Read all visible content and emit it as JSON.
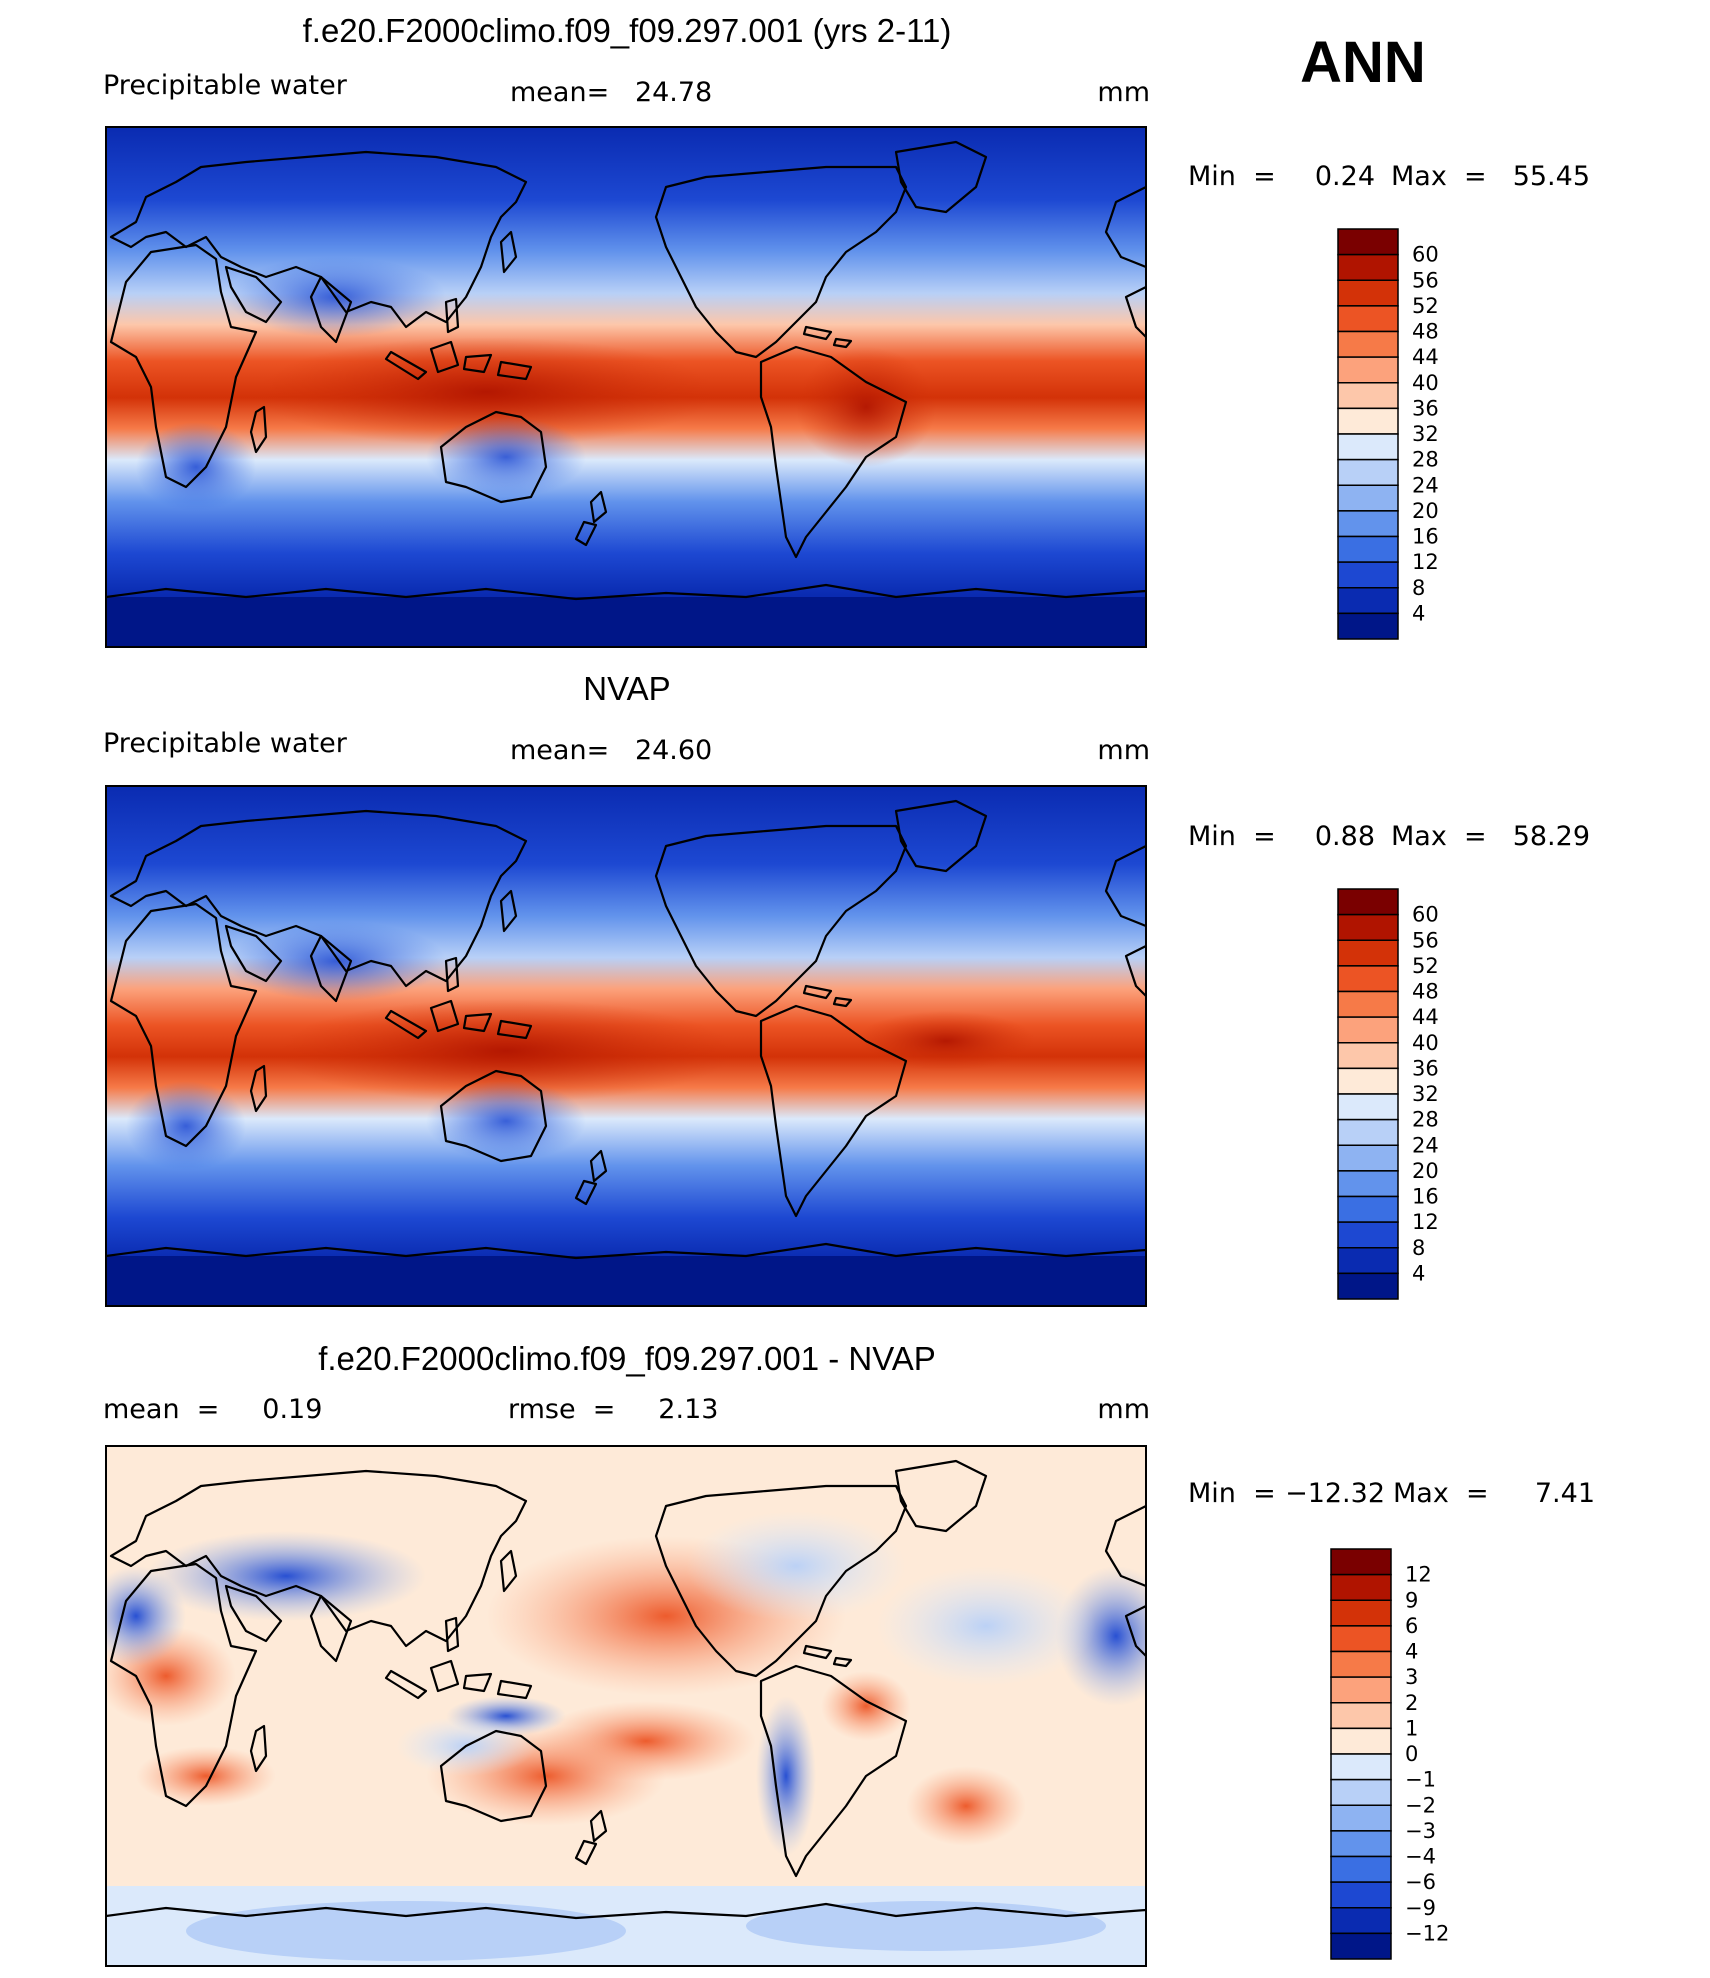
{
  "annotation": "ANN",
  "chart_data": [
    {
      "type": "heatmap",
      "title": "f.e20.F2000climo.f09_f09.297.001 (yrs 2-11)",
      "variable": "Precipitable water",
      "stat_left": "",
      "stat_center": "mean=   24.78",
      "units": "mm",
      "min_label": "Min  =",
      "min": "0.24",
      "max_label": "Max  =",
      "max": "55.45",
      "levels": [
        "60",
        "56",
        "52",
        "48",
        "44",
        "40",
        "36",
        "32",
        "28",
        "24",
        "20",
        "16",
        "12",
        "8",
        "4"
      ],
      "colors": [
        "#7a0000",
        "#b01400",
        "#d33208",
        "#ec5424",
        "#f67a48",
        "#fca27c",
        "#fdc7aa",
        "#feead8",
        "#dbe9fb",
        "#b8d0f7",
        "#8eb3f2",
        "#6293ec",
        "#3a6fe3",
        "#1d48d2",
        "#0a2bb1",
        "#001688"
      ],
      "grid": false
    },
    {
      "type": "heatmap",
      "title": "NVAP",
      "variable": "Precipitable water",
      "stat_left": "",
      "stat_center": "mean=   24.60",
      "units": "mm",
      "min_label": "Min  =",
      "min": "0.88",
      "max_label": "Max  =",
      "max": "58.29",
      "levels": [
        "60",
        "56",
        "52",
        "48",
        "44",
        "40",
        "36",
        "32",
        "28",
        "24",
        "20",
        "16",
        "12",
        "8",
        "4"
      ],
      "colors": [
        "#7a0000",
        "#b01400",
        "#d33208",
        "#ec5424",
        "#f67a48",
        "#fca27c",
        "#fdc7aa",
        "#feead8",
        "#dbe9fb",
        "#b8d0f7",
        "#8eb3f2",
        "#6293ec",
        "#3a6fe3",
        "#1d48d2",
        "#0a2bb1",
        "#001688"
      ],
      "grid": false
    },
    {
      "type": "heatmap",
      "title": "f.e20.F2000climo.f09_f09.297.001 - NVAP",
      "variable": "",
      "stat_left": "mean  =     0.19",
      "stat_center": "rmse  =     2.13",
      "units": "mm",
      "min_label": "Min  =",
      "min": "−12.32",
      "max_label": "Max  =",
      "max": "7.41",
      "levels": [
        "12",
        "9",
        "6",
        "4",
        "3",
        "2",
        "1",
        "0",
        "−1",
        "−2",
        "−3",
        "−4",
        "−6",
        "−9",
        "−12"
      ],
      "colors": [
        "#7a0000",
        "#b01400",
        "#d33208",
        "#ec5424",
        "#f67a48",
        "#fca27c",
        "#fdc7aa",
        "#feead8",
        "#dbe9fb",
        "#b8d0f7",
        "#8eb3f2",
        "#6293ec",
        "#3a6fe3",
        "#1d48d2",
        "#0a2bb1",
        "#001688"
      ],
      "grid": false
    }
  ]
}
